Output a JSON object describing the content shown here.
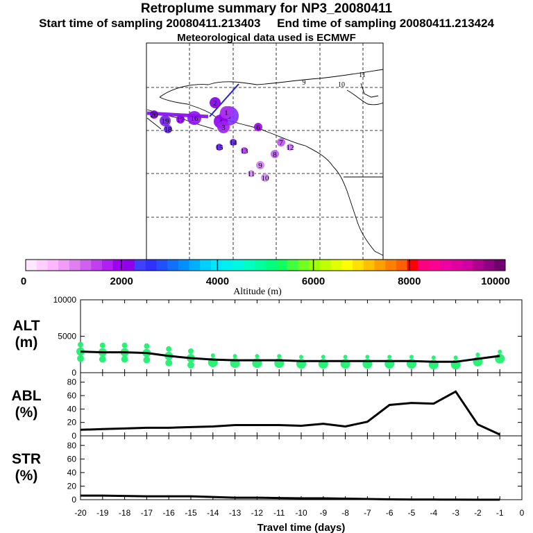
{
  "header": {
    "title": "Retroplume summary for NP3_20080411",
    "start_label": "Start time of sampling 20080411.213403",
    "end_label": "End time of sampling 20080411.213424",
    "met_label": "Meteorological data used is ECMWF"
  },
  "colorbar": {
    "label": "Altitude (m)",
    "min": 0,
    "max": 10000,
    "tick_labels": [
      "0",
      "2000",
      "4000",
      "6000",
      "8000",
      "10000"
    ],
    "colors": [
      "#ffe8ff",
      "#ffd0ff",
      "#ffb8ff",
      "#f09cf8",
      "#e080f0",
      "#d060f0",
      "#c040f0",
      "#b020f0",
      "#a000f0",
      "#9000e8",
      "#4040ff",
      "#3030ff",
      "#2050ff",
      "#1070ff",
      "#0090ff",
      "#00b0ff",
      "#00d0ff",
      "#00e8ff",
      "#00f0f0",
      "#00f8e0",
      "#00ffc0",
      "#00ffa0",
      "#00ff80",
      "#10ff60",
      "#40ff40",
      "#70ff20",
      "#a0ff00",
      "#c0ff00",
      "#e0ff00",
      "#ffff00",
      "#ffe000",
      "#ffc000",
      "#ffa000",
      "#ff8000",
      "#ff6000",
      "#ff0000",
      "#ff0080",
      "#ff0090",
      "#f000a0",
      "#e000a0",
      "#d000a0",
      "#b00090",
      "#900080",
      "#700070"
    ]
  },
  "map": {
    "points": [
      {
        "label": "5",
        "color": "#8030ff"
      },
      {
        "label": "4",
        "color": "#9000f0"
      },
      {
        "label": "3",
        "color": "#a020f0"
      },
      {
        "label": "1",
        "color": "#b030f0"
      },
      {
        "label": "2",
        "color": "#8000e0"
      },
      {
        "label": "6",
        "color": "#a000f0"
      },
      {
        "label": "7",
        "color": "#c050f0"
      },
      {
        "label": "8",
        "color": "#c060f0"
      },
      {
        "label": "9",
        "color": "#d080f0"
      },
      {
        "label": "10",
        "color": "#d090f0"
      },
      {
        "label": "11",
        "color": "#d090f0"
      },
      {
        "label": "12",
        "color": "#c070f0"
      },
      {
        "label": "13",
        "color": "#b040f0"
      },
      {
        "label": "14",
        "color": "#6020e0"
      },
      {
        "label": "15",
        "color": "#6020e0"
      },
      {
        "label": "16",
        "color": "#9010f0"
      },
      {
        "label": "17",
        "color": "#9000f0"
      },
      {
        "label": "18",
        "color": "#6020e0"
      },
      {
        "label": "19",
        "color": "#7020e0"
      },
      {
        "label": "20",
        "color": "#8000e0"
      },
      {
        "label": "9",
        "color": "#000000"
      },
      {
        "label": "10",
        "color": "#000000"
      },
      {
        "label": "11",
        "color": "#000000"
      }
    ]
  },
  "chart_data": [
    {
      "type": "line",
      "name": "altitude",
      "ylabel": "ALT\n(m)",
      "ylabel_lines": [
        "ALT",
        "(m)"
      ],
      "x": [
        -20,
        -19,
        -18,
        -17,
        -16,
        -15,
        -14,
        -13,
        -12,
        -11,
        -10,
        -9,
        -8,
        -7,
        -6,
        -5,
        -4,
        -3,
        -2,
        -1
      ],
      "values": [
        2900,
        2800,
        2800,
        2700,
        2300,
        2000,
        1800,
        1700,
        1700,
        1700,
        1600,
        1600,
        1600,
        1600,
        1600,
        1600,
        1500,
        1500,
        1900,
        2300
      ],
      "ylim": [
        0,
        10000
      ],
      "yticks": [
        "0",
        "5000",
        "10000"
      ],
      "scatter_color": "#20f070"
    },
    {
      "type": "line",
      "name": "abl",
      "ylabel_lines": [
        "ABL",
        "(%)"
      ],
      "x": [
        -20,
        -19,
        -18,
        -17,
        -16,
        -15,
        -14,
        -13,
        -12,
        -11,
        -10,
        -9,
        -8,
        -7,
        -6,
        -5,
        -4,
        -3,
        -2,
        -1
      ],
      "values": [
        9,
        10,
        11,
        12,
        12,
        13,
        14,
        16,
        16,
        16,
        15,
        18,
        14,
        21,
        46,
        49,
        48,
        66,
        17,
        2
      ],
      "ylim": [
        0,
        90
      ],
      "yticks": [
        "0",
        "20",
        "40",
        "60",
        "80"
      ]
    },
    {
      "type": "line",
      "name": "str",
      "ylabel_lines": [
        "STR",
        "(%)"
      ],
      "x": [
        -20,
        -19,
        -18,
        -17,
        -16,
        -15,
        -14,
        -13,
        -12,
        -11,
        -10,
        -9,
        -8,
        -7,
        -6,
        -5,
        -4,
        -3,
        -2,
        -1
      ],
      "values": [
        6,
        6,
        5.5,
        5,
        5,
        5,
        4,
        3,
        3,
        2.5,
        2,
        2,
        1.5,
        1,
        0.5,
        0.3,
        0.2,
        0.1,
        0,
        0
      ],
      "ylim": [
        0,
        90
      ],
      "yticks": [
        "0",
        "20",
        "40",
        "60",
        "80"
      ],
      "xlabel": "Travel time (days)",
      "xtick_labels": [
        "-20",
        "-19",
        "-18",
        "-17",
        "-16",
        "-15",
        "-14",
        "-13",
        "-12",
        "-11",
        "-10",
        "-9",
        "-8",
        "-7",
        "-6",
        "-5",
        "-4",
        "-3",
        "-2",
        "-1",
        "0"
      ]
    }
  ]
}
